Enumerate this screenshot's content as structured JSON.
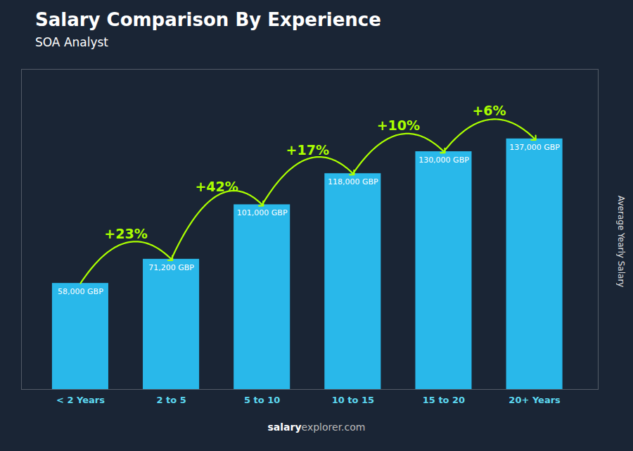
{
  "chart_data": {
    "type": "bar",
    "title": "Salary Comparison By Experience",
    "subtitle": "SOA Analyst",
    "ylabel": "Average Yearly Salary",
    "categories": [
      "< 2 Years",
      "2 to 5",
      "5 to 10",
      "10 to 15",
      "15 to 20",
      "20+ Years"
    ],
    "values": [
      58000,
      71200,
      101000,
      118000,
      130000,
      137000
    ],
    "value_labels": [
      "58,000 GBP",
      "71,200 GBP",
      "101,000 GBP",
      "118,000 GBP",
      "130,000 GBP",
      "137,000 GBP"
    ],
    "data_labels": true,
    "color": "#29B8EA",
    "annotations": [
      {
        "text": "+23%",
        "color": "#AAFF00"
      },
      {
        "text": "+42%",
        "color": "#AAFF00"
      },
      {
        "text": "+17%",
        "color": "#AAFF00"
      },
      {
        "text": "+10%",
        "color": "#AAFF00"
      },
      {
        "text": "+6%",
        "color": "#AAFF00"
      }
    ],
    "footer": [
      "salary",
      "explorer.com"
    ],
    "ylim": [
      0,
      175000
    ],
    "tick_labels": "x",
    "grid": false
  }
}
